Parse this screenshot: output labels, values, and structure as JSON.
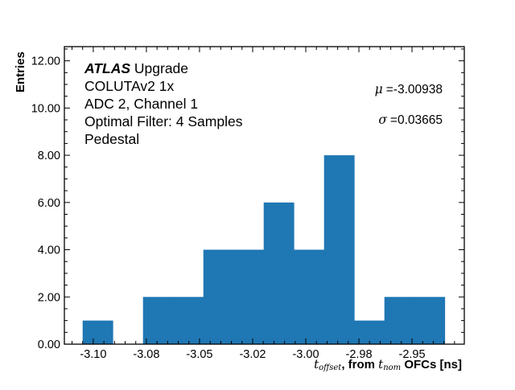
{
  "chart_data": {
    "type": "bar",
    "subtype": "histogram",
    "title": "",
    "xlabel_parts": {
      "t1": "t",
      "sub1": "offset",
      "mid": ", from ",
      "t2": "t",
      "sub2": "nom",
      "tail": " OFCs [ns]"
    },
    "ylabel": "Entries",
    "xlim": [
      -3.1136,
      -2.9254
    ],
    "ylim": [
      0,
      12.6
    ],
    "bin_edges": [
      -3.105,
      -3.0908,
      -3.0766,
      -3.0624,
      -3.0482,
      -3.034,
      -3.0198,
      -3.0056,
      -2.9914,
      -2.9772,
      -2.963,
      -2.9488,
      -2.9346
    ],
    "values": [
      1,
      0,
      2,
      2,
      4,
      4,
      6,
      4,
      8,
      1,
      2,
      2
    ],
    "bar_color": "#1f77b4",
    "x_ticks": [
      -3.1,
      -3.075,
      -3.05,
      -3.025,
      -3.0,
      -2.975,
      -2.95
    ],
    "x_tick_labels": [
      "-3.10",
      "-3.08",
      "-3.05",
      "-3.02",
      "-3.00",
      "-2.98",
      "-2.95"
    ],
    "y_ticks": [
      0,
      2,
      4,
      6,
      8,
      10,
      12
    ],
    "y_tick_labels": [
      "0.00",
      "2.00",
      "4.00",
      "6.00",
      "8.00",
      "10.00",
      "12.00"
    ],
    "grid": false,
    "annotations": {
      "atlas": "ATLAS",
      "upgrade": " Upgrade",
      "lines": [
        "COLUTAv2 1x",
        "ADC 2, Channel 1",
        "Optimal Filter: 4 Samples",
        "Pedestal"
      ],
      "mu_symbol": "μ",
      "mu_value": "=-3.00938",
      "sigma_symbol": "σ",
      "sigma_value": "=0.03665"
    }
  }
}
